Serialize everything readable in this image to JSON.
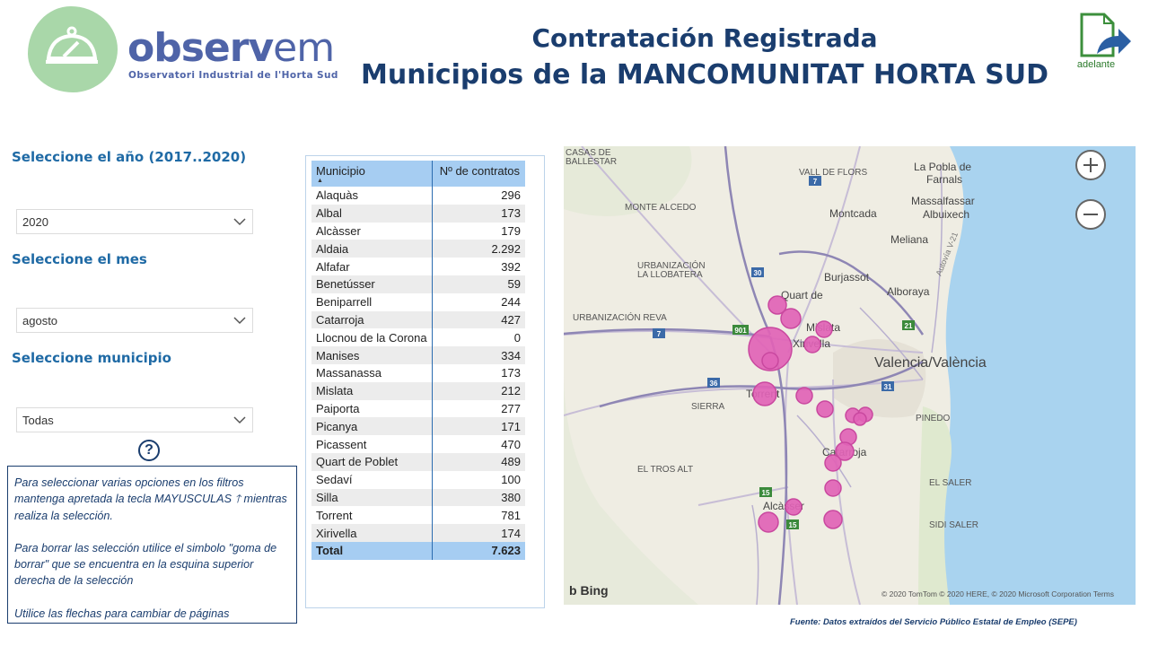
{
  "logo": {
    "word_main": "observ",
    "word_em": "em",
    "subtitle": "Observatori Industrial de l'Horta Sud"
  },
  "header": {
    "title_line1": "Contratación Registrada",
    "title_line2": "Municipios de la MANCOMUNITAT HORTA SUD",
    "next_label": "adelante"
  },
  "filters": {
    "year_label": "Seleccione el año (2017..2020)",
    "year_value": "2020",
    "month_label": "Seleccione el mes",
    "month_value": "agosto",
    "municipio_label": "Seleccione municipio",
    "municipio_value": "Todas"
  },
  "help": {
    "icon": "?",
    "p1": "Para seleccionar varias opciones en los filtros mantenga apretada la tecla MAYUSCULAS 🡑 mientras realiza la selección.",
    "p2": "Para borrar las selección utilice el simbolo \"goma de borrar\" que se encuentra en la esquina superior derecha  de la selección",
    "p3": "Utilice las flechas para cambiar de páginas"
  },
  "table": {
    "col_municipio": "Municipio",
    "col_contratos": "Nº de contratos",
    "rows": [
      {
        "m": "Alaquàs",
        "n": "296"
      },
      {
        "m": "Albal",
        "n": "173"
      },
      {
        "m": "Alcàsser",
        "n": "179"
      },
      {
        "m": "Aldaia",
        "n": "2.292"
      },
      {
        "m": "Alfafar",
        "n": "392"
      },
      {
        "m": "Benetússer",
        "n": "59"
      },
      {
        "m": "Beniparrell",
        "n": "244"
      },
      {
        "m": "Catarroja",
        "n": "427"
      },
      {
        "m": "Llocnou de la Corona",
        "n": "0"
      },
      {
        "m": "Manises",
        "n": "334"
      },
      {
        "m": "Massanassa",
        "n": "173"
      },
      {
        "m": "Mislata",
        "n": "212"
      },
      {
        "m": "Paiporta",
        "n": "277"
      },
      {
        "m": "Picanya",
        "n": "171"
      },
      {
        "m": "Picassent",
        "n": "470"
      },
      {
        "m": "Quart de Poblet",
        "n": "489"
      },
      {
        "m": "Sedaví",
        "n": "100"
      },
      {
        "m": "Silla",
        "n": "380"
      },
      {
        "m": "Torrent",
        "n": "781"
      },
      {
        "m": "Xirivella",
        "n": "174"
      }
    ],
    "total_label": "Total",
    "total_value": "7.623"
  },
  "map": {
    "labels": {
      "casas": "CASAS DE",
      "ballestar": "BALLESTAR",
      "vall": "VALL DE FLORS",
      "pobla": "La Pobla de",
      "farnals": "Farnals",
      "alcedo": "MONTE ALCEDO",
      "moncada": "Montcada",
      "massalfassar": "Massalfassar",
      "albuixech": "Albuixech",
      "meliana": "Meliana",
      "urb1": "URBANIZACIÓN",
      "urb1b": "LA LLOBATERA",
      "burjassot": "Burjassot",
      "alboraya": "Alboraya",
      "urb2": "URBANIZACIÓN REVA",
      "quart": "Quart de",
      "mislata": "Mislata",
      "xirivella": "Xirivella",
      "valencia": "Valencia/València",
      "torrent": "Torrent",
      "sierra": "SIERRA",
      "pinedo": "PINEDO",
      "catarroja": "Catarroja",
      "trosalt": "EL TROS ALT",
      "saler": "EL SALER",
      "alcasser": "Alcàsser",
      "sidi": "SIDI SALER",
      "autovia": "Autovía V-21"
    },
    "road_numbers": [
      "7",
      "30",
      "7",
      "901",
      "36",
      "31",
      "21",
      "15",
      "15"
    ],
    "bing": "Bing",
    "copyright": "© 2020 TomTom © 2020 HERE, © 2020 Microsoft Corporation  Terms"
  },
  "colors": {
    "bubble": "#e163b6",
    "header_blue": "#1a3d6e",
    "table_header": "#a6cdf2"
  },
  "source": "Fuente: Datos extraídos del Servicio Público Estatal de Empleo (SEPE)"
}
